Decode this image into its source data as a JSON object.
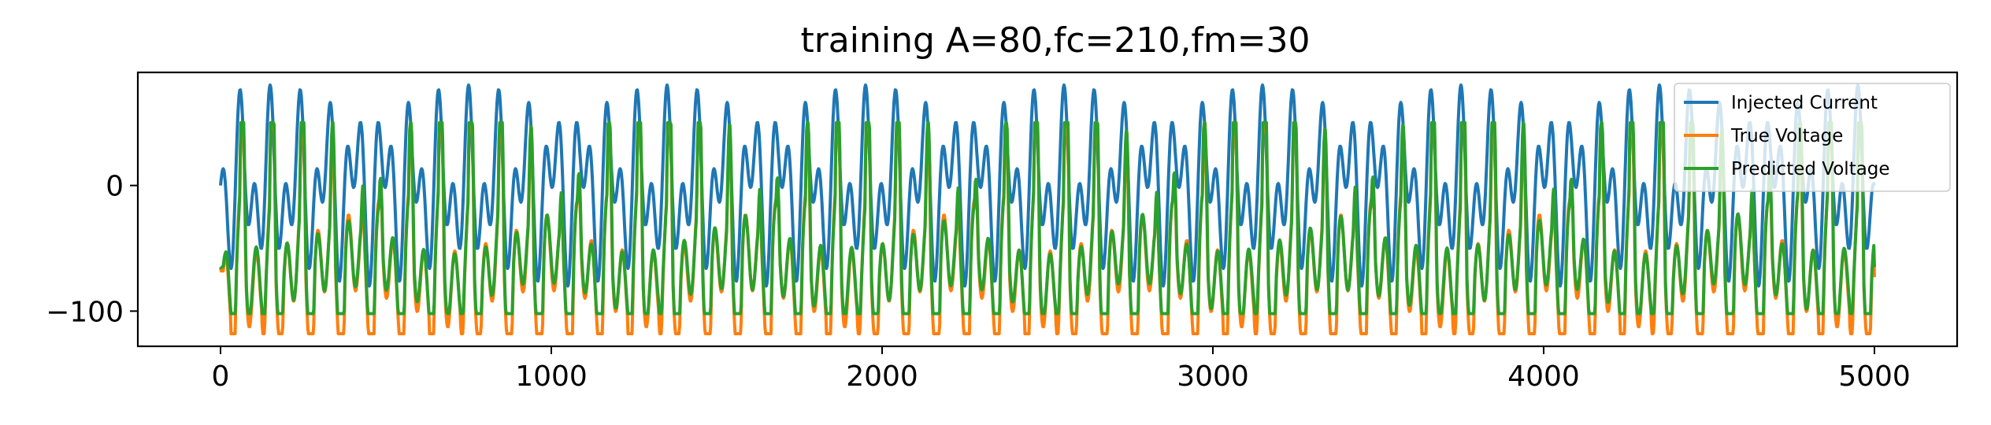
{
  "chart_data": {
    "type": "line",
    "title": "training A=80,fc=210,fm=30",
    "xlabel": "",
    "ylabel": "",
    "xlim": [
      -250,
      5250
    ],
    "ylim": [
      -128,
      90
    ],
    "x_ticks": [
      0,
      1000,
      2000,
      3000,
      4000,
      5000
    ],
    "x_tick_labels": [
      "0",
      "1000",
      "2000",
      "3000",
      "4000",
      "5000"
    ],
    "y_ticks": [
      0,
      -100
    ],
    "y_tick_labels": [
      "0",
      "−100"
    ],
    "x": [
      0,
      5000
    ],
    "grid": false,
    "legend_position": "top-right",
    "series": [
      {
        "name": "Injected Current",
        "color": "#1f77b4",
        "model": "80*sin(2*pi*t/200)*cos(2*pi*t/60), t = 0..5000",
        "range": [
          -60,
          80
        ]
      },
      {
        "name": "True Voltage",
        "color": "#ff7f0e",
        "range": [
          -118,
          47
        ],
        "start": -65,
        "end": -73
      },
      {
        "name": "Predicted Voltage",
        "color": "#2ca02c",
        "range": [
          -102,
          50
        ],
        "start": -65,
        "end": -65
      }
    ]
  }
}
